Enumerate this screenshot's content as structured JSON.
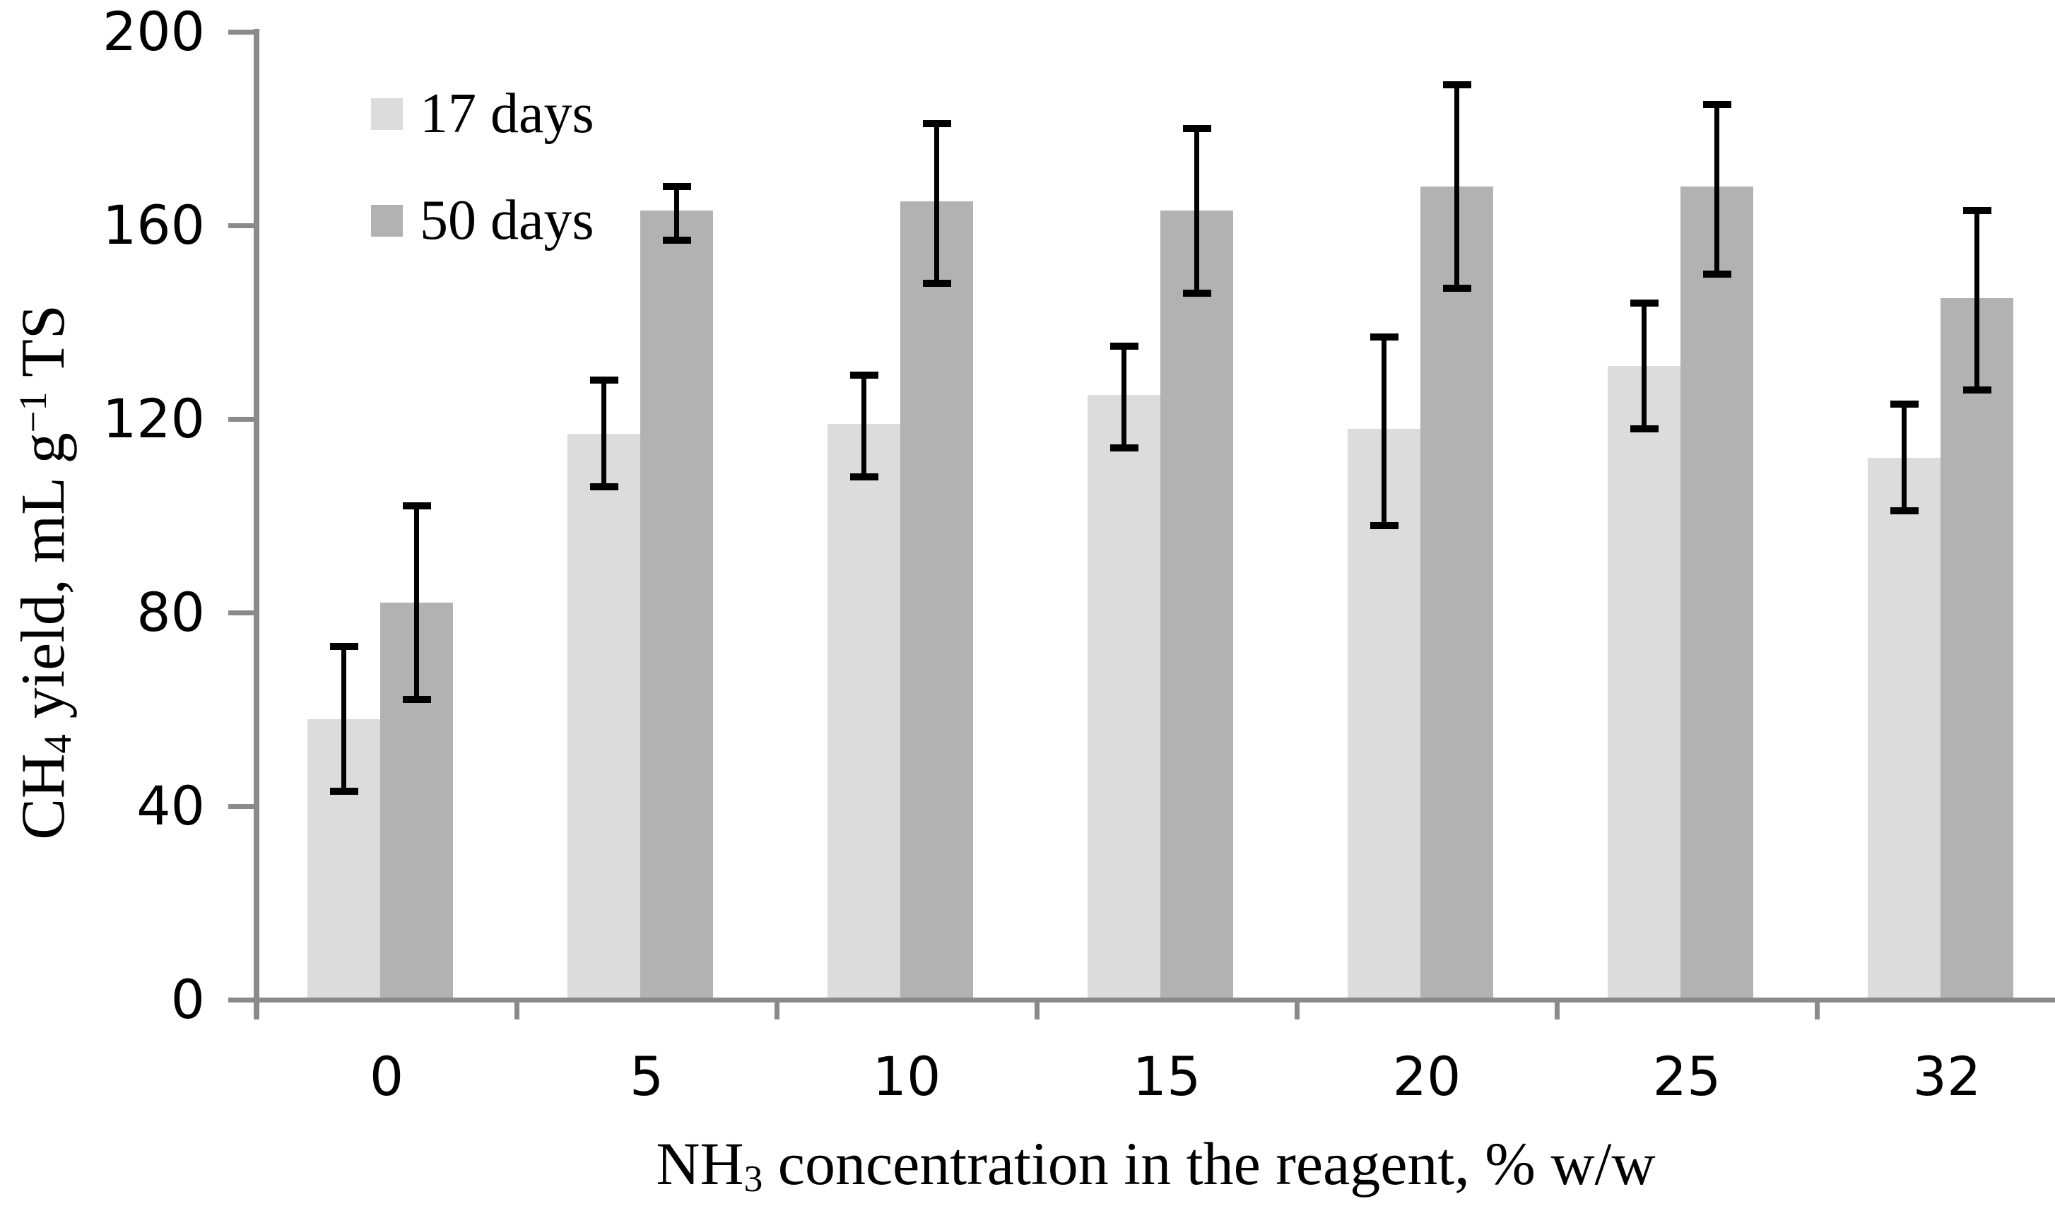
{
  "chart_data": {
    "type": "bar",
    "title": "",
    "xlabel": "NH3 concentration in the reagent, % w/w",
    "ylabel": "CH4 yield, mL g-1 TS",
    "categories": [
      "0",
      "5",
      "10",
      "15",
      "20",
      "25",
      "32"
    ],
    "series": [
      {
        "name": "17 days",
        "color": "#DCDCDC",
        "values": [
          58,
          117,
          119,
          125,
          118,
          131,
          112
        ],
        "error_low": [
          43,
          106,
          108,
          114,
          98,
          118,
          101
        ],
        "error_high": [
          73,
          128,
          129,
          135,
          137,
          144,
          123
        ]
      },
      {
        "name": "50 days",
        "color": "#B2B2B2",
        "values": [
          82,
          163,
          165,
          163,
          168,
          168,
          145
        ],
        "error_low": [
          62,
          157,
          148,
          146,
          147,
          150,
          126
        ],
        "error_high": [
          102,
          168,
          181,
          180,
          189,
          185,
          163
        ]
      }
    ],
    "ylim": [
      0,
      200
    ],
    "yticks": [
      0,
      40,
      80,
      120,
      160,
      200
    ],
    "grid": false,
    "legend_position": "upper-left-inside",
    "error_bar_color": "#000000",
    "axis_color": "#8A8A8A"
  },
  "labels": {
    "x_pre": "NH",
    "x_sub": "3",
    "x_post": " concentration in the reagent, % w/w",
    "y_pre": "CH",
    "y_sub": "4",
    "y_mid": " yield, mL g",
    "y_sup": "−1",
    "y_post": " TS"
  }
}
